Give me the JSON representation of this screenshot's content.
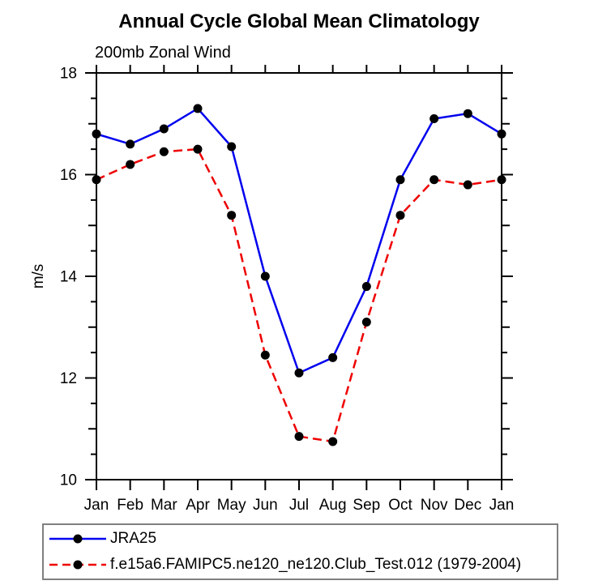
{
  "title": "Annual Cycle Global Mean Climatology",
  "subtitle": "200mb Zonal Wind",
  "ylabel": "m/s",
  "chart_data": {
    "type": "line",
    "title": "Annual Cycle Global Mean Climatology",
    "subtitle": "200mb Zonal Wind",
    "xlabel": "",
    "ylabel": "m/s",
    "categories": [
      "Jan",
      "Feb",
      "Mar",
      "Apr",
      "May",
      "Jun",
      "Jul",
      "Aug",
      "Sep",
      "Oct",
      "Nov",
      "Dec",
      "Jan"
    ],
    "series": [
      {
        "name": "JRA25",
        "color": "#0000ee",
        "line_style": "solid",
        "marker": "filled-circle",
        "marker_color": "#000000",
        "values": [
          16.8,
          16.6,
          16.9,
          17.3,
          16.55,
          14.0,
          12.1,
          12.4,
          13.8,
          15.9,
          17.1,
          17.2,
          16.8
        ]
      },
      {
        "name": "f.e15a6.FAMIPC5.ne120_ne120.Club_Test.012 (1979-2004)",
        "color": "#ee0000",
        "line_style": "dashed",
        "marker": "filled-circle",
        "marker_color": "#000000",
        "values": [
          15.9,
          16.2,
          16.45,
          16.5,
          15.2,
          12.45,
          10.85,
          10.75,
          13.1,
          15.2,
          15.9,
          15.8,
          15.9
        ]
      }
    ],
    "ylim": [
      10,
      18
    ],
    "yticks_major": [
      10,
      12,
      14,
      16,
      18
    ],
    "ytick_minor_step": 0.5,
    "grid": false,
    "legend_position": "bottom",
    "axis_color": "#000000",
    "legend_border_color": "#808080"
  }
}
